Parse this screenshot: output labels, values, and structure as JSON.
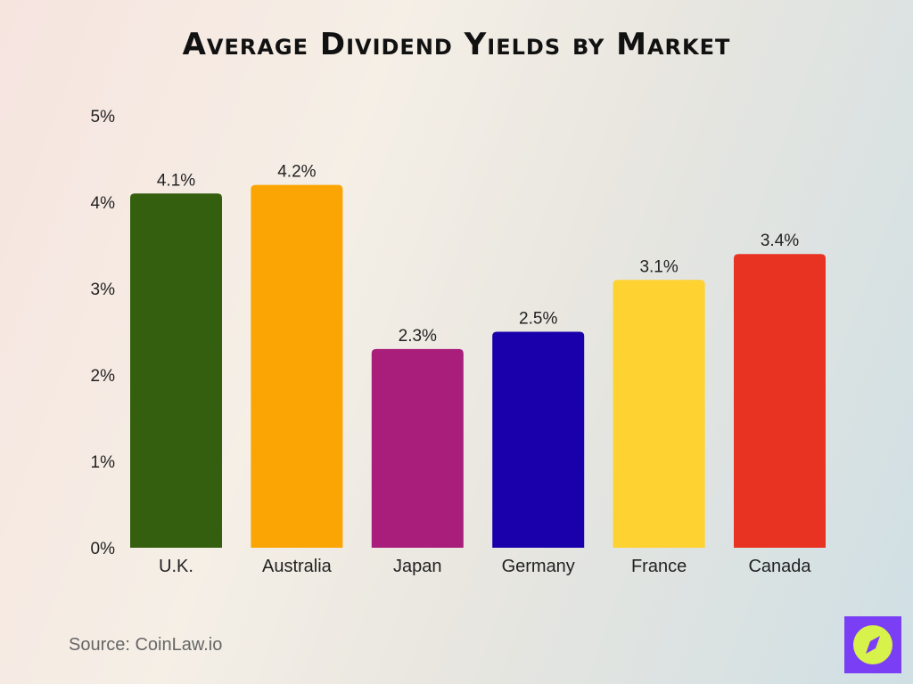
{
  "title": "Average Dividend Yields by Market",
  "source": "Source: CoinLaw.io",
  "logo_icon": "compass-icon",
  "chart_data": {
    "type": "bar",
    "title": "Average Dividend Yields by Market",
    "categories": [
      "U.K.",
      "Australia",
      "Japan",
      "Germany",
      "France",
      "Canada"
    ],
    "values": [
      4.1,
      4.2,
      2.3,
      2.5,
      3.1,
      3.4
    ],
    "data_labels": [
      "4.1%",
      "4.2%",
      "2.3%",
      "2.5%",
      "3.1%",
      "3.4%"
    ],
    "colors": [
      "#335f0f",
      "#fba504",
      "#a81e7a",
      "#1900aa",
      "#fdd231",
      "#e83222"
    ],
    "ylim": [
      0,
      5
    ],
    "yticks": [
      "0%",
      "1%",
      "2%",
      "3%",
      "4%",
      "5%"
    ],
    "grid": false,
    "xlabel": "",
    "ylabel": ""
  }
}
